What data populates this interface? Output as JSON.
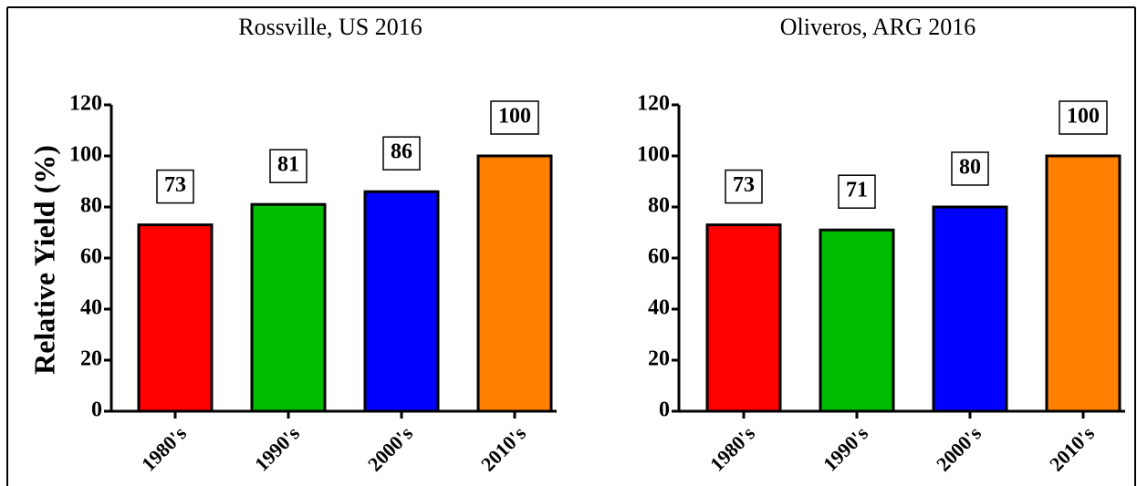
{
  "chart_data": [
    {
      "type": "bar",
      "title": "Rossville, US 2016",
      "y_label": "Relative Yield (%)",
      "categories": [
        "1980's",
        "1990's",
        "2000's",
        "2010's"
      ],
      "values": [
        73,
        81,
        86,
        100
      ],
      "colors": [
        "#ff0000",
        "#00bb00",
        "#0000ff",
        "#ff8000"
      ],
      "ylim": [
        0,
        120
      ],
      "yticks": [
        0,
        20,
        40,
        60,
        80,
        100,
        120
      ]
    },
    {
      "type": "bar",
      "title": "Oliveros, ARG 2016",
      "categories": [
        "1980's",
        "1990's",
        "2000's",
        "2010's"
      ],
      "values": [
        73,
        71,
        80,
        100
      ],
      "colors": [
        "#ff0000",
        "#00bb00",
        "#0000ff",
        "#ff8000"
      ],
      "ylim": [
        0,
        120
      ],
      "yticks": [
        0,
        20,
        40,
        60,
        80,
        100,
        120
      ]
    }
  ]
}
